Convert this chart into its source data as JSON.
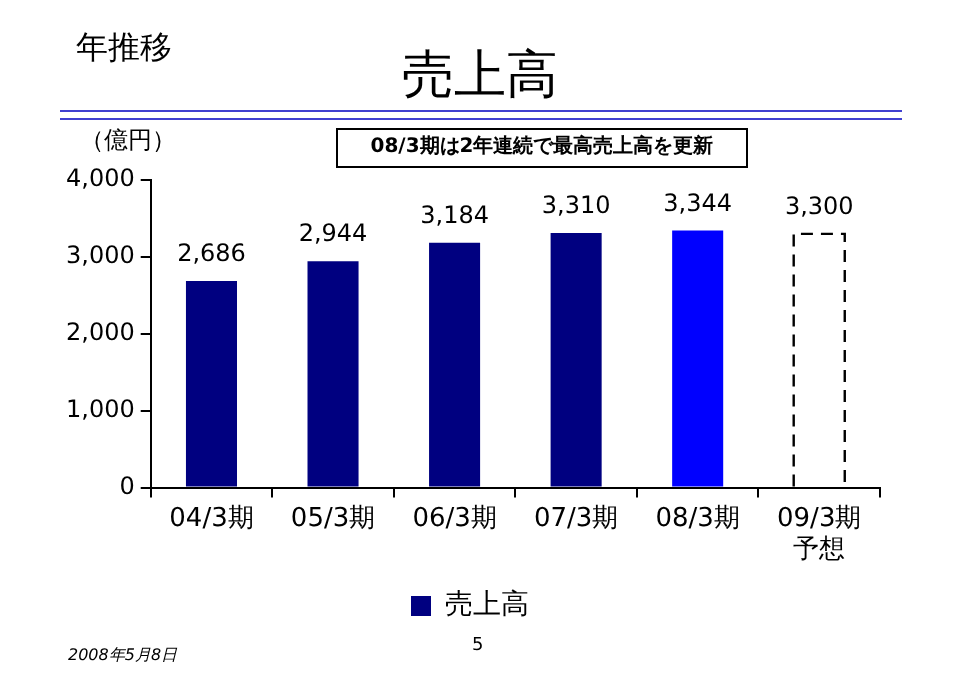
{
  "chart_data": {
    "type": "bar",
    "title": "売上高",
    "ylabel": "（億円）",
    "annotations": [
      "年推移",
      "08/3期は2年連続で最高売上高を更新",
      "2008年5月8日",
      "5"
    ],
    "categories": [
      "04/3期",
      "05/3期",
      "06/3期",
      "07/3期",
      "08/3期",
      "09/3期予想"
    ],
    "series": [
      {
        "name": "売上高",
        "color": "#000080",
        "colors": [
          "#000080",
          "#000080",
          "#000080",
          "#000080",
          "#0000ff",
          null
        ],
        "values": [
          2686,
          2944,
          3184,
          3310,
          3344,
          null
        ],
        "value_labels": [
          "2,686",
          "2,944",
          "3,184",
          "3,310",
          "3,344",
          null
        ]
      },
      {
        "color": "#ffffff",
        "line_style": "dashed",
        "values": [
          null,
          null,
          null,
          null,
          null,
          3300
        ],
        "value_labels": [
          null,
          null,
          null,
          null,
          null,
          "3,300"
        ]
      }
    ],
    "ylim": [
      0,
      4000
    ],
    "yticks": [
      {
        "value": 0,
        "label": "0"
      },
      {
        "value": 1000,
        "label": "1,000"
      },
      {
        "value": 2000,
        "label": "2,000"
      },
      {
        "value": 3000,
        "label": "3,000"
      },
      {
        "value": 4000,
        "label": "4,000"
      }
    ],
    "grid": false,
    "legend": "bottom"
  }
}
